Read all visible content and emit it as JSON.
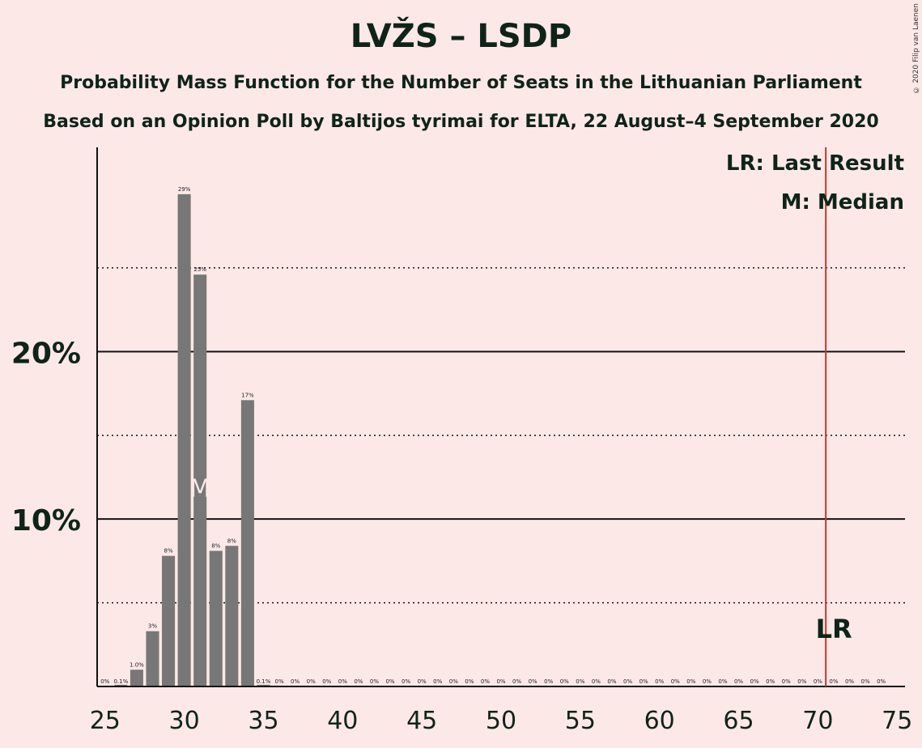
{
  "chart_data": {
    "type": "bar",
    "title": "LVŽS – LSDP",
    "subtitle": "Probability Mass Function for the Number of Seats in the Lithuanian Parliament",
    "source": "Based on an Opinion Poll by Baltijos tyrimai for ELTA, 22 August–4 September 2020",
    "copyright": "© 2020 Filip van Laenen",
    "x": [
      25,
      26,
      27,
      28,
      29,
      30,
      31,
      32,
      33,
      34,
      35,
      36,
      37,
      38,
      39,
      40,
      41,
      42,
      43,
      44,
      45,
      46,
      47,
      48,
      49,
      50,
      51,
      52,
      53,
      54,
      55,
      56,
      57,
      58,
      59,
      60,
      61,
      62,
      63,
      64,
      65,
      66,
      67,
      68,
      69,
      70,
      71,
      72,
      73,
      74
    ],
    "values": [
      0,
      0.1,
      1.0,
      3.3,
      7.8,
      29.4,
      24.6,
      8.1,
      8.4,
      17.1,
      0.1,
      0,
      0,
      0,
      0,
      0,
      0,
      0,
      0,
      0,
      0,
      0,
      0,
      0,
      0,
      0,
      0,
      0,
      0,
      0,
      0,
      0,
      0,
      0,
      0,
      0,
      0,
      0,
      0,
      0,
      0,
      0,
      0,
      0,
      0,
      0,
      0,
      0,
      0,
      0
    ],
    "labels": [
      "0%",
      "0.1%",
      "1.0%",
      "3%",
      "8%",
      "29%",
      "25%",
      "8%",
      "8%",
      "17%",
      "0.1%",
      "0%",
      "0%",
      "0%",
      "0%",
      "0%",
      "0%",
      "0%",
      "0%",
      "0%",
      "0%",
      "0%",
      "0%",
      "0%",
      "0%",
      "0%",
      "0%",
      "0%",
      "0%",
      "0%",
      "0%",
      "0%",
      "0%",
      "0%",
      "0%",
      "0%",
      "0%",
      "0%",
      "0%",
      "0%",
      "0%",
      "0%",
      "0%",
      "0%",
      "0%",
      "0%",
      "0%",
      "0%",
      "0%",
      "0%"
    ],
    "xticks": [
      25,
      30,
      35,
      40,
      45,
      50,
      55,
      60,
      65,
      70,
      75
    ],
    "xtick_labels": [
      "25",
      "30",
      "35",
      "40",
      "45",
      "50",
      "55",
      "60",
      "65",
      "70",
      "75"
    ],
    "xlim": [
      24.5,
      75.5
    ],
    "ylim": [
      0,
      32.2
    ],
    "yticks_major": [
      10,
      20
    ],
    "ytick_labels": [
      "10%",
      "20%"
    ],
    "yticks_minor": [
      5,
      15,
      25
    ],
    "median": 31,
    "median_label": "M",
    "last_result": 70.5,
    "last_result_label": "LR",
    "legend": [
      "LR: Last Result",
      "M: Median"
    ],
    "bar_color": "#777777",
    "lr_color": "#c0392b"
  }
}
